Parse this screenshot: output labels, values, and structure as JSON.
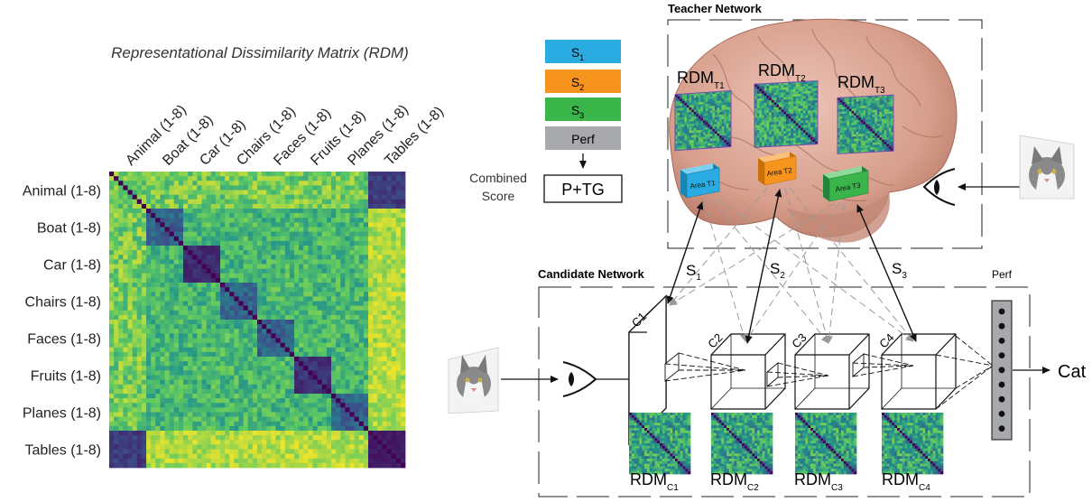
{
  "rdm_panel": {
    "title": "Representational Dissimilarity Matrix (RDM)",
    "categories": [
      "Animal (1-8)",
      "Boat (1-8)",
      "Car (1-8)",
      "Chairs (1-8)",
      "Faces (1-8)",
      "Fruits (1-8)",
      "Planes (1-8)",
      "Tables (1-8)"
    ],
    "colormap": [
      "#440154",
      "#3b528b",
      "#21918c",
      "#5ec962",
      "#fde725"
    ]
  },
  "legend": {
    "items": [
      {
        "base": "S",
        "sub": "1",
        "color": "#2aace2"
      },
      {
        "base": "S",
        "sub": "2",
        "color": "#f7941d"
      },
      {
        "base": "S",
        "sub": "3",
        "color": "#39b54a"
      },
      {
        "base": "Perf",
        "sub": "",
        "color": "#a7a9ac"
      }
    ],
    "combined_label_1": "Combined",
    "combined_label_2": "Score",
    "result": "P+TG"
  },
  "teacher": {
    "title": "Teacher Network",
    "rdms": [
      {
        "base": "RDM",
        "sub": "T1"
      },
      {
        "base": "RDM",
        "sub": "T2"
      },
      {
        "base": "RDM",
        "sub": "T3"
      }
    ],
    "areas": [
      {
        "label": "Area T1",
        "color": "#2aace2"
      },
      {
        "label": "Area T2",
        "color": "#f7941d"
      },
      {
        "label": "Area T3",
        "color": "#39b54a"
      }
    ],
    "brain_color": "#dba898"
  },
  "candidate": {
    "title": "Candidate Network",
    "layers": [
      "C1",
      "C2",
      "C3",
      "C4"
    ],
    "rdms": [
      {
        "base": "RDM",
        "sub": "C1"
      },
      {
        "base": "RDM",
        "sub": "C2"
      },
      {
        "base": "RDM",
        "sub": "C3"
      },
      {
        "base": "RDM",
        "sub": "C4"
      }
    ],
    "perf_label": "Perf",
    "output_label": "Cat"
  },
  "similarity_labels": [
    {
      "base": "S",
      "sub": "1"
    },
    {
      "base": "S",
      "sub": "2"
    },
    {
      "base": "S",
      "sub": "3"
    }
  ]
}
